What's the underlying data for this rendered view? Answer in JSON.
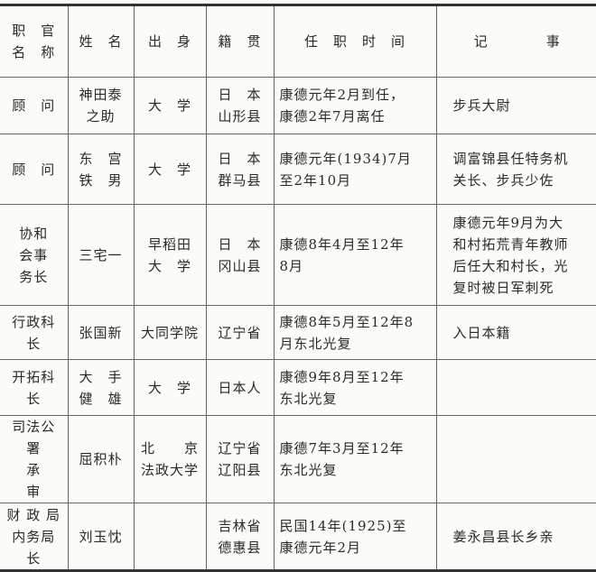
{
  "headers": [
    "职　官\n名　称",
    "姓　名",
    "出　身",
    "籍　贯",
    "任　职　时　间",
    "记　　　　事"
  ],
  "rows": [
    [
      "顾　问",
      "神田泰\n之助",
      "大　学",
      "日　本\n山形县",
      "康德元年2月到任，\n康德2年7月离任",
      "步兵大尉"
    ],
    [
      "顾　问",
      "东　宫\n铁　男",
      "大　学",
      "日　本\n群马县",
      "康德元年(1934)7月\n至2年10月",
      "调富锦县任特务机\n关长、步兵少佐"
    ],
    [
      "协和\n会事\n务长",
      "三宅一",
      "早稻田\n大　学",
      "日　本\n冈山县",
      "康德8年4月至12年\n8月",
      "康德元年9月为大\n和村拓荒青年教师\n后任大和村长，光\n复时被日军刺死"
    ],
    [
      "行政科长",
      "张国新",
      "大同学院",
      "辽宁省",
      "康德8年5月至12年8\n月东北光复",
      "入日本籍"
    ],
    [
      "开拓科长",
      "大　手\n健　雄",
      "大　学",
      "日本人",
      "康德9年8月至12年\n东北光复",
      ""
    ],
    [
      "司法公署\n承　　审",
      "屈积朴",
      "北　　京\n法政大学",
      "辽宁省\n辽阳县",
      "康德7年3月至12年\n东北光复",
      ""
    ],
    [
      "财 政 局\n内务局长",
      "刘玉忱",
      "",
      "吉林省\n德惠县",
      "民国14年(1925)至\n康德元年2月",
      "姜永昌县长乡亲"
    ]
  ]
}
